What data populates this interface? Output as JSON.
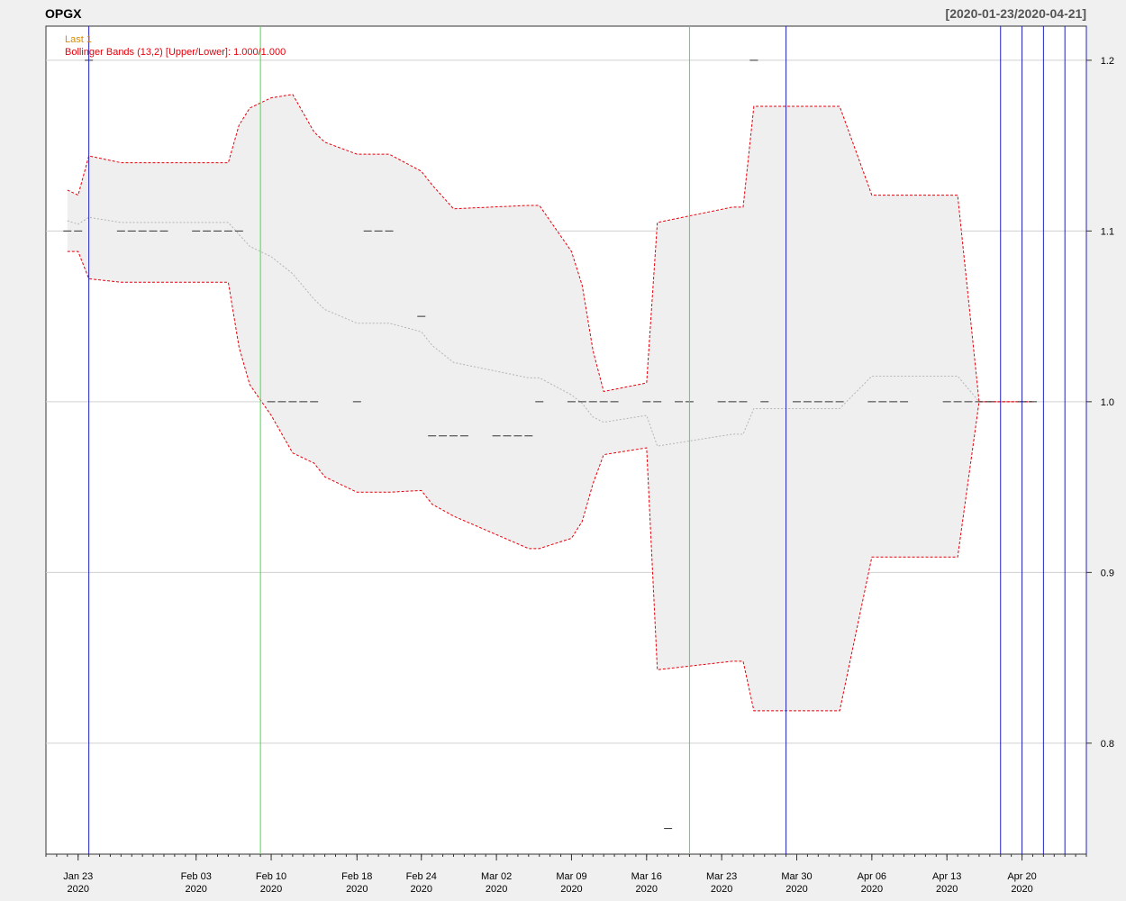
{
  "chart_data": {
    "type": "line",
    "title": "OPGX",
    "date_range": "[2020-01-23/2020-04-21]",
    "legend": [
      {
        "text": "Last 1",
        "color": "#d98c00"
      },
      {
        "text": "Bollinger Bands (13,2) [Upper/Lower]: 1.000/1.000",
        "color": "#e8000b"
      }
    ],
    "colors": {
      "price": "#333333",
      "band": "#e8000b",
      "band_fill": "#efefef",
      "ma": "#b5b5b5",
      "green_vline": "#3ee63e",
      "blue_vline": "#2222bb",
      "grid": "#d0d0d0"
    },
    "x_range": [
      "2020-01-20",
      "2020-04-26"
    ],
    "ylim": [
      0.735,
      1.22
    ],
    "y_ticks": [
      0.8,
      0.9,
      1.0,
      1.1,
      1.2
    ],
    "y_tick_labels": [
      "0.8",
      "0.9",
      "1.0",
      "1.1",
      "1.2"
    ],
    "x_ticks": [
      {
        "date": "2020-01-23",
        "label": "Jan 23",
        "year": "2020"
      },
      {
        "date": "2020-02-03",
        "label": "Feb 03",
        "year": "2020"
      },
      {
        "date": "2020-02-10",
        "label": "Feb 10",
        "year": "2020"
      },
      {
        "date": "2020-02-18",
        "label": "Feb 18",
        "year": "2020"
      },
      {
        "date": "2020-02-24",
        "label": "Feb 24",
        "year": "2020"
      },
      {
        "date": "2020-03-02",
        "label": "Mar 02",
        "year": "2020"
      },
      {
        "date": "2020-03-09",
        "label": "Mar 09",
        "year": "2020"
      },
      {
        "date": "2020-03-16",
        "label": "Mar 16",
        "year": "2020"
      },
      {
        "date": "2020-03-23",
        "label": "Mar 23",
        "year": "2020"
      },
      {
        "date": "2020-03-30",
        "label": "Mar 30",
        "year": "2020"
      },
      {
        "date": "2020-04-06",
        "label": "Apr 06",
        "year": "2020"
      },
      {
        "date": "2020-04-13",
        "label": "Apr 13",
        "year": "2020"
      },
      {
        "date": "2020-04-20",
        "label": "Apr 20",
        "year": "2020"
      }
    ],
    "price_series": [
      {
        "x": "2020-01-22",
        "y": 1.1
      },
      {
        "x": "2020-01-23",
        "y": 1.1
      },
      {
        "x": "2020-01-24",
        "y": 1.2
      },
      {
        "x": "2020-01-27",
        "y": 1.1
      },
      {
        "x": "2020-01-28",
        "y": 1.1
      },
      {
        "x": "2020-01-29",
        "y": 1.1
      },
      {
        "x": "2020-01-30",
        "y": 1.1
      },
      {
        "x": "2020-01-31",
        "y": 1.1
      },
      {
        "x": "2020-02-03",
        "y": 1.1
      },
      {
        "x": "2020-02-04",
        "y": 1.1
      },
      {
        "x": "2020-02-05",
        "y": 1.1
      },
      {
        "x": "2020-02-06",
        "y": 1.1
      },
      {
        "x": "2020-02-07",
        "y": 1.1
      },
      {
        "x": "2020-02-10",
        "y": 1.0
      },
      {
        "x": "2020-02-11",
        "y": 1.0
      },
      {
        "x": "2020-02-12",
        "y": 1.0
      },
      {
        "x": "2020-02-13",
        "y": 1.0
      },
      {
        "x": "2020-02-14",
        "y": 1.0
      },
      {
        "x": "2020-02-18",
        "y": 1.0
      },
      {
        "x": "2020-02-19",
        "y": 1.1
      },
      {
        "x": "2020-02-20",
        "y": 1.1
      },
      {
        "x": "2020-02-21",
        "y": 1.1
      },
      {
        "x": "2020-02-24",
        "y": 1.05
      },
      {
        "x": "2020-02-25",
        "y": 0.98
      },
      {
        "x": "2020-02-26",
        "y": 0.98
      },
      {
        "x": "2020-02-27",
        "y": 0.98
      },
      {
        "x": "2020-02-28",
        "y": 0.98
      },
      {
        "x": "2020-03-02",
        "y": 0.98
      },
      {
        "x": "2020-03-03",
        "y": 0.98
      },
      {
        "x": "2020-03-04",
        "y": 0.98
      },
      {
        "x": "2020-03-05",
        "y": 0.98
      },
      {
        "x": "2020-03-06",
        "y": 1.0
      },
      {
        "x": "2020-03-09",
        "y": 1.0
      },
      {
        "x": "2020-03-10",
        "y": 1.0
      },
      {
        "x": "2020-03-11",
        "y": 1.0
      },
      {
        "x": "2020-03-12",
        "y": 1.0
      },
      {
        "x": "2020-03-13",
        "y": 1.0
      },
      {
        "x": "2020-03-16",
        "y": 1.0
      },
      {
        "x": "2020-03-17",
        "y": 1.0
      },
      {
        "x": "2020-03-18",
        "y": 0.75
      },
      {
        "x": "2020-03-19",
        "y": 1.0
      },
      {
        "x": "2020-03-20",
        "y": 1.0
      },
      {
        "x": "2020-03-23",
        "y": 1.0
      },
      {
        "x": "2020-03-24",
        "y": 1.0
      },
      {
        "x": "2020-03-25",
        "y": 1.0
      },
      {
        "x": "2020-03-26",
        "y": 1.2
      },
      {
        "x": "2020-03-27",
        "y": 1.0
      },
      {
        "x": "2020-03-30",
        "y": 1.0
      },
      {
        "x": "2020-03-31",
        "y": 1.0
      },
      {
        "x": "2020-04-01",
        "y": 1.0
      },
      {
        "x": "2020-04-02",
        "y": 1.0
      },
      {
        "x": "2020-04-03",
        "y": 1.0
      },
      {
        "x": "2020-04-06",
        "y": 1.0
      },
      {
        "x": "2020-04-07",
        "y": 1.0
      },
      {
        "x": "2020-04-08",
        "y": 1.0
      },
      {
        "x": "2020-04-09",
        "y": 1.0
      },
      {
        "x": "2020-04-13",
        "y": 1.0
      },
      {
        "x": "2020-04-14",
        "y": 1.0
      },
      {
        "x": "2020-04-15",
        "y": 1.0
      },
      {
        "x": "2020-04-16",
        "y": 1.0
      },
      {
        "x": "2020-04-17",
        "y": 1.0
      },
      {
        "x": "2020-04-20",
        "y": 1.0
      },
      {
        "x": "2020-04-21",
        "y": 1.0
      }
    ],
    "bollinger": [
      {
        "x": "2020-01-22",
        "upper": 1.124,
        "ma": 1.106,
        "lower": 1.088
      },
      {
        "x": "2020-01-23",
        "upper": 1.121,
        "ma": 1.104,
        "lower": 1.088
      },
      {
        "x": "2020-01-24",
        "upper": 1.144,
        "ma": 1.108,
        "lower": 1.072
      },
      {
        "x": "2020-01-27",
        "upper": 1.14,
        "ma": 1.105,
        "lower": 1.07
      },
      {
        "x": "2020-02-06",
        "upper": 1.14,
        "ma": 1.105,
        "lower": 1.07
      },
      {
        "x": "2020-02-07",
        "upper": 1.162,
        "ma": 1.098,
        "lower": 1.032
      },
      {
        "x": "2020-02-08",
        "upper": 1.172,
        "ma": 1.091,
        "lower": 1.01
      },
      {
        "x": "2020-02-10",
        "upper": 1.178,
        "ma": 1.085,
        "lower": 0.992
      },
      {
        "x": "2020-02-12",
        "upper": 1.18,
        "ma": 1.075,
        "lower": 0.97
      },
      {
        "x": "2020-02-14",
        "upper": 1.158,
        "ma": 1.06,
        "lower": 0.964
      },
      {
        "x": "2020-02-15",
        "upper": 1.152,
        "ma": 1.054,
        "lower": 0.956
      },
      {
        "x": "2020-02-18",
        "upper": 1.145,
        "ma": 1.046,
        "lower": 0.947
      },
      {
        "x": "2020-02-20",
        "upper": 1.145,
        "ma": 1.046,
        "lower": 0.947
      },
      {
        "x": "2020-02-21",
        "upper": 1.145,
        "ma": 1.046,
        "lower": 0.947
      },
      {
        "x": "2020-02-24",
        "upper": 1.135,
        "ma": 1.041,
        "lower": 0.948
      },
      {
        "x": "2020-02-25",
        "upper": 1.127,
        "ma": 1.033,
        "lower": 0.94
      },
      {
        "x": "2020-02-27",
        "upper": 1.113,
        "ma": 1.023,
        "lower": 0.933
      },
      {
        "x": "2020-03-05",
        "upper": 1.115,
        "ma": 1.014,
        "lower": 0.914
      },
      {
        "x": "2020-03-06",
        "upper": 1.115,
        "ma": 1.014,
        "lower": 0.914
      },
      {
        "x": "2020-03-09",
        "upper": 1.088,
        "ma": 1.004,
        "lower": 0.92
      },
      {
        "x": "2020-03-10",
        "upper": 1.068,
        "ma": 0.999,
        "lower": 0.93
      },
      {
        "x": "2020-03-11",
        "upper": 1.03,
        "ma": 0.991,
        "lower": 0.952
      },
      {
        "x": "2020-03-12",
        "upper": 1.006,
        "ma": 0.988,
        "lower": 0.969
      },
      {
        "x": "2020-03-16",
        "upper": 1.011,
        "ma": 0.992,
        "lower": 0.973
      },
      {
        "x": "2020-03-17",
        "upper": 1.105,
        "ma": 0.974,
        "lower": 0.843
      },
      {
        "x": "2020-03-24",
        "upper": 1.114,
        "ma": 0.981,
        "lower": 0.848
      },
      {
        "x": "2020-03-25",
        "upper": 1.114,
        "ma": 0.981,
        "lower": 0.848
      },
      {
        "x": "2020-03-26",
        "upper": 1.173,
        "ma": 0.996,
        "lower": 0.819
      },
      {
        "x": "2020-04-03",
        "upper": 1.173,
        "ma": 0.996,
        "lower": 0.819
      },
      {
        "x": "2020-04-06",
        "upper": 1.121,
        "ma": 1.015,
        "lower": 0.909
      },
      {
        "x": "2020-04-14",
        "upper": 1.121,
        "ma": 1.015,
        "lower": 0.909
      },
      {
        "x": "2020-04-16",
        "upper": 1.0,
        "ma": 1.0,
        "lower": 1.0
      },
      {
        "x": "2020-04-21",
        "upper": 1.0,
        "ma": 1.0,
        "lower": 1.0
      }
    ],
    "green_vlines": [
      "2020-02-09",
      "2020-03-20"
    ],
    "blue_vlines": [
      "2020-01-24",
      "2020-03-29",
      "2020-04-18",
      "2020-04-20",
      "2020-04-22",
      "2020-04-24",
      "2020-04-26"
    ],
    "grid": true,
    "legend_position": "top-left"
  }
}
